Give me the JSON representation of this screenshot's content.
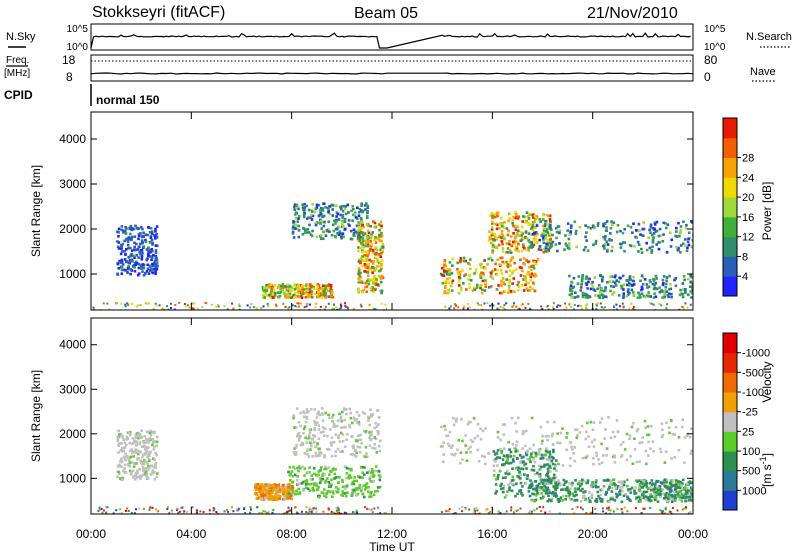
{
  "header": {
    "station": "Stokkseyri (fitACF)",
    "beam": "Beam 05",
    "date": "21/Nov/2010"
  },
  "strip": {
    "nsky_label": "N.Sky",
    "nsky_ticks": [
      "10^5",
      "10^0"
    ],
    "nsearch_label": "N.Search",
    "nsearch_ticks": [
      "10^5",
      "10^0"
    ],
    "freq_label": "Freq.",
    "freq_unit": "[MHz]",
    "freq_ticks": [
      "18",
      "8"
    ],
    "nave_label": "Nave",
    "nave_ticks": [
      "80",
      "0"
    ],
    "cpid_label": "CPID",
    "cpid_value": "normal 150"
  },
  "chart_data": [
    {
      "type": "heatmap",
      "quantity": "power",
      "ylabel": "Slant Range [km]",
      "ylim": [
        200,
        4600
      ],
      "yticks": [
        1000,
        2000,
        3000,
        4000
      ],
      "xlabel": "Time UT",
      "xlim_hours": [
        0,
        24
      ],
      "colorbar_label": "Power [dB]",
      "colorbar_ticks": [
        "4",
        "8",
        "12",
        "16",
        "20",
        "24",
        "28"
      ],
      "colorbar_colors": [
        "#1f23ff",
        "#2a5fb8",
        "#2f8f6a",
        "#3fae3a",
        "#9dd93a",
        "#f0d800",
        "#f9a300",
        "#f06000",
        "#e61c00"
      ],
      "data_gaps_hours": [
        [
          11.8,
          13.9
        ]
      ],
      "echo_regions": [
        {
          "t": [
            1.0,
            2.6
          ],
          "range": [
            1000,
            2100
          ],
          "level": "low"
        },
        {
          "t": [
            6.8,
            9.6
          ],
          "range": [
            500,
            800
          ],
          "level": "high"
        },
        {
          "t": [
            8.0,
            11.0
          ],
          "range": [
            1800,
            2600
          ],
          "level": "medium"
        },
        {
          "t": [
            10.6,
            11.6
          ],
          "range": [
            600,
            2200
          ],
          "level": "high"
        },
        {
          "t": [
            13.9,
            17.8
          ],
          "range": [
            600,
            1400
          ],
          "level": "high"
        },
        {
          "t": [
            15.8,
            18.3
          ],
          "range": [
            1500,
            2400
          ],
          "level": "high"
        },
        {
          "t": [
            17.5,
            24.0
          ],
          "range": [
            1500,
            2200
          ],
          "level": "medium"
        },
        {
          "t": [
            19.0,
            24.0
          ],
          "range": [
            500,
            1000
          ],
          "level": "medium"
        }
      ]
    },
    {
      "type": "heatmap",
      "quantity": "velocity",
      "ylabel": "Slant Range [km]",
      "ylim": [
        200,
        4600
      ],
      "yticks": [
        1000,
        2000,
        3000,
        4000
      ],
      "xlabel": "Time UT",
      "xticks": [
        "00:00",
        "04:00",
        "08:00",
        "12:00",
        "16:00",
        "20:00",
        "00:00"
      ],
      "colorbar_label": "Velocity",
      "colorbar_unit": "[m s",
      "colorbar_unit_exp": "-1",
      "colorbar_ticks": [
        "1000",
        "500",
        "100",
        "25",
        "-25",
        "-100",
        "-500",
        "-1000"
      ],
      "colorbar_colors": [
        "#1f3fd0",
        "#2b7a9a",
        "#2e8f50",
        "#5ccc2a",
        "#c0c0c0",
        "#f0a000",
        "#f06a00",
        "#e62800",
        "#e00000"
      ],
      "data_gaps_hours": [
        [
          11.8,
          13.9
        ]
      ],
      "echo_regions": [
        {
          "t": [
            1.0,
            2.6
          ],
          "range": [
            1000,
            2100
          ],
          "level": "ground"
        },
        {
          "t": [
            6.5,
            8.0
          ],
          "range": [
            550,
            900
          ],
          "level": "neg"
        },
        {
          "t": [
            7.8,
            11.5
          ],
          "range": [
            600,
            1300
          ],
          "level": "pos"
        },
        {
          "t": [
            8.0,
            11.5
          ],
          "range": [
            1500,
            2600
          ],
          "level": "ground"
        },
        {
          "t": [
            13.9,
            24.0
          ],
          "range": [
            1300,
            2400
          ],
          "level": "ground"
        },
        {
          "t": [
            16.0,
            18.5
          ],
          "range": [
            600,
            1700
          ],
          "level": "pos2"
        },
        {
          "t": [
            17.5,
            22.0
          ],
          "range": [
            500,
            1000
          ],
          "level": "pos2"
        },
        {
          "t": [
            21.8,
            24.0
          ],
          "range": [
            500,
            1000
          ],
          "level": "pos2"
        }
      ]
    }
  ]
}
